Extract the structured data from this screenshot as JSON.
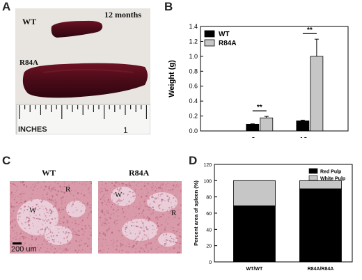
{
  "panels": {
    "a": "A",
    "b": "B",
    "c": "C",
    "d": "D"
  },
  "photo_a": {
    "wt_label": "WT",
    "r84a_label": "R84A",
    "age_label": "12 months",
    "ruler_unit": "INCHES",
    "ruler_number": "1"
  },
  "histology_c": {
    "wt_title": "WT",
    "r84a_title": "R84A",
    "wt_w": "W",
    "wt_r": "R",
    "r84a_w": "W",
    "r84a_r": "R",
    "scale_label": "200 um"
  },
  "chart_data": [
    {
      "type": "bar",
      "panel": "B",
      "categories": [
        "3 mo",
        "12 mo"
      ],
      "series": [
        {
          "name": "WT",
          "values": [
            0.09,
            0.135
          ],
          "errors": [
            0.005,
            0.01
          ],
          "color": "#000000"
        },
        {
          "name": "R84A",
          "values": [
            0.175,
            1.0
          ],
          "errors": [
            0.02,
            0.23
          ],
          "color": "#c6c6c6"
        }
      ],
      "ylabel": "Weight (g)",
      "ylim": [
        0,
        1.4
      ],
      "yticks": [
        "0.0",
        "0.2",
        "0.4",
        "0.6",
        "0.8",
        "1.0",
        "1.2",
        "1.4"
      ],
      "significance": [
        "**",
        "**"
      ],
      "legend": "top-left"
    },
    {
      "type": "bar",
      "stacked": true,
      "panel": "D",
      "categories": [
        "WT/WT",
        "R84A/R84A"
      ],
      "series": [
        {
          "name": "Red Pulp",
          "values": [
            69,
            90
          ],
          "color": "#000000"
        },
        {
          "name": "White Pulp",
          "values": [
            31,
            10
          ],
          "color": "#c6c6c6"
        }
      ],
      "ylabel": "Percent area of spleen (%)",
      "ylim": [
        0,
        120
      ],
      "yticks": [
        "0",
        "20",
        "40",
        "60",
        "80",
        "100",
        "120"
      ],
      "legend": "top-right"
    }
  ]
}
